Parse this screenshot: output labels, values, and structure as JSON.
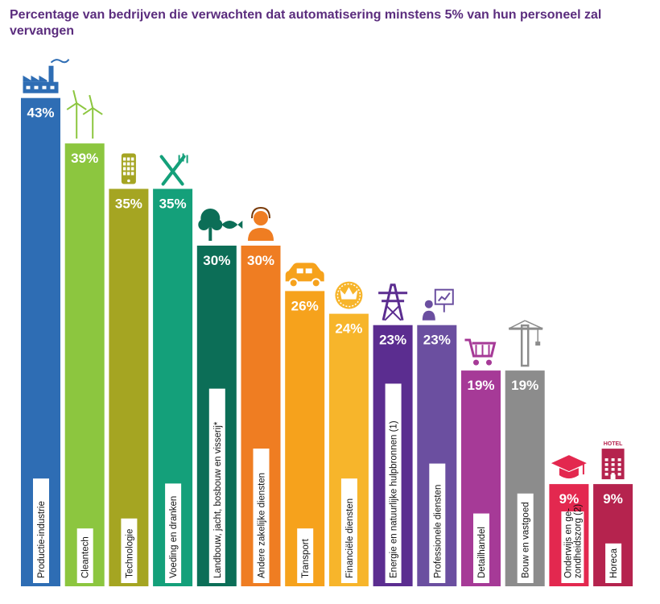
{
  "title": "Percentage van bedrijven die verwachten dat automatisering minstens 5% van hun personeel zal vervangen",
  "chart_data": {
    "type": "bar",
    "title": "Percentage van bedrijven die verwachten dat automatisering minstens 5% van hun personeel zal vervangen",
    "xlabel": "",
    "ylabel": "",
    "ylim": [
      0,
      45
    ],
    "grid": false,
    "legend": "none",
    "categories": [
      "Productie-industrie",
      "Cleantech",
      "Technologie",
      "Voeding en dranken",
      "Landbouw, jacht, bosbouw en visserij*",
      "Andere zakelijke diensten",
      "Transport",
      "Financiële diensten",
      "Energie en natuurlijke hulpbronnen (1)",
      "Professionele diensten",
      "Detailhandel",
      "Bouw en vastgoed",
      "Onderwijs en gezondheidszorg (2)",
      "Horeca"
    ],
    "values": [
      43,
      39,
      35,
      35,
      30,
      30,
      26,
      24,
      23,
      23,
      19,
      19,
      9,
      9
    ],
    "value_labels": [
      "43%",
      "39%",
      "35%",
      "35%",
      "30%",
      "30%",
      "26%",
      "24%",
      "23%",
      "23%",
      "19%",
      "19%",
      "9%",
      "9%"
    ],
    "bar_labels": [
      [
        "Productie-industrie"
      ],
      [
        "Cleantech"
      ],
      [
        "Technologie"
      ],
      [
        "Voeding en dranken"
      ],
      [
        "Landbouw, jacht, bosbouw en visserij*"
      ],
      [
        "Andere zakelijke diensten"
      ],
      [
        "Transport"
      ],
      [
        "Financiële diensten"
      ],
      [
        "Energie en natuurlijke hulpbronnen (1)"
      ],
      [
        "Professionele diensten"
      ],
      [
        "Detailhandel"
      ],
      [
        "Bouw en vastgoed"
      ],
      [
        "Onderwijs en ge-",
        "zondheidszorg (2)"
      ],
      [
        "Horeca"
      ]
    ],
    "colors": [
      "#2e6db4",
      "#8cc63f",
      "#a5a522",
      "#14a07a",
      "#0c6e57",
      "#ef7d22",
      "#f6a21c",
      "#f7b52b",
      "#5b2d90",
      "#6b4fa0",
      "#a63a97",
      "#8c8c8c",
      "#e3284f",
      "#b5234e"
    ],
    "icons": [
      "factory-icon",
      "wind-turbine-icon",
      "smartphone-icon",
      "fork-knife-icon",
      "tree-fish-icon",
      "person-headset-icon",
      "car-icon",
      "crown-coin-icon",
      "power-pylon-icon",
      "presenter-chart-icon",
      "shopping-cart-icon",
      "crane-icon",
      "graduation-cap-icon",
      "hotel-building-icon"
    ],
    "icon_labels": {
      "hotel": "HOTEL"
    }
  }
}
